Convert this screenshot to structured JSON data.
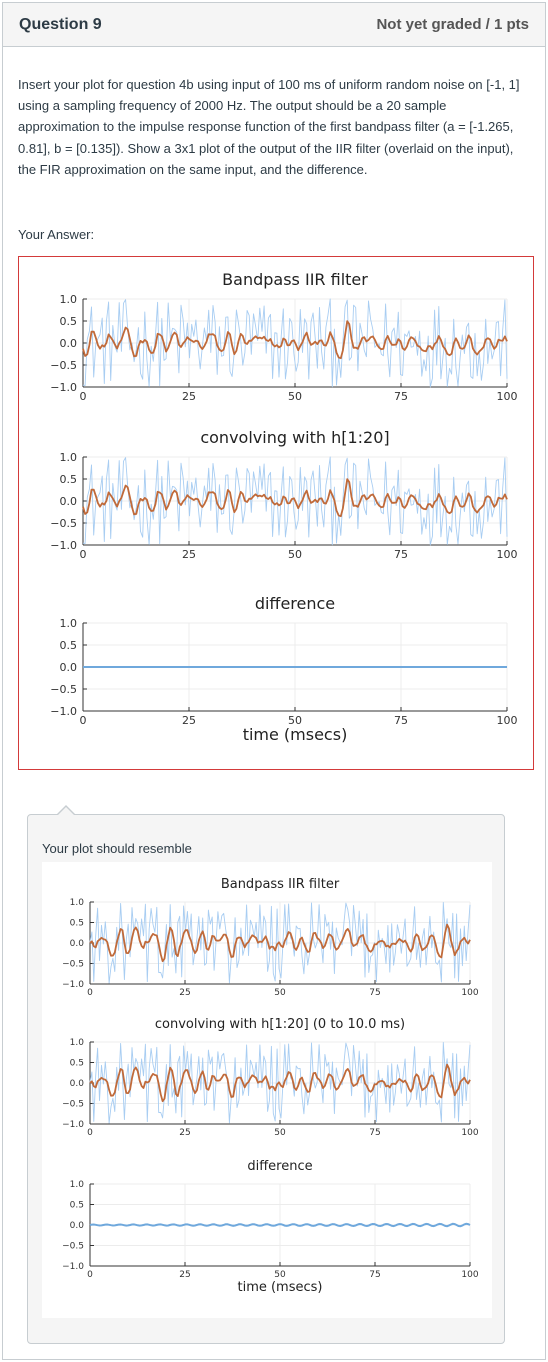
{
  "question": {
    "title": "Question 9",
    "grade": "Not yet graded / 1 pts",
    "text": "Insert your plot for question 4b using input of 100 ms of uniform random noise on [-1, 1] using a sampling frequency of 2000 Hz.  The output should be a 20 sample approximation to the impulse response function of the first bandpass filter (a = [-1.265, 0.81], b = [0.135]).  Show a 3x1 plot of the output of the IIR filter (overlaid on the input), the FIR approximation on the same input, and the difference.",
    "your_answer_label": "Your Answer:",
    "resemble_label": "Your plot should resemble"
  },
  "colors": {
    "input_series": "#a8cdf2",
    "output_series": "#c06a3a",
    "difference_series": "#6fa8dc",
    "answer_border": "#d33a3a"
  },
  "answer_chart": {
    "chart_data": [
      {
        "type": "line",
        "title": "Bandpass IIR filter",
        "xlim": [
          0,
          100
        ],
        "ylim": [
          -1.0,
          1.0
        ],
        "xticks": [
          "0",
          "25",
          "50",
          "75",
          "100"
        ],
        "yticks": [
          "1.0",
          "0.5",
          "0.0",
          "−0.5",
          "−1.0"
        ],
        "series": [
          {
            "kind": "input"
          },
          {
            "kind": "output"
          }
        ]
      },
      {
        "type": "line",
        "title": "convolving with h[1:20]",
        "xlim": [
          0,
          100
        ],
        "ylim": [
          -1.0,
          1.0
        ],
        "xticks": [
          "0",
          "25",
          "50",
          "75",
          "100"
        ],
        "yticks": [
          "1.0",
          "0.5",
          "0.0",
          "−0.5",
          "−1.0"
        ],
        "series": [
          {
            "kind": "input"
          },
          {
            "kind": "output"
          }
        ]
      },
      {
        "type": "line",
        "title": "difference",
        "xlabel": "time (msecs)",
        "xlim": [
          0,
          100
        ],
        "ylim": [
          -1.0,
          1.0
        ],
        "xticks": [
          "0",
          "25",
          "50",
          "75",
          "100"
        ],
        "yticks": [
          "1.0",
          "0.5",
          "0.0",
          "−0.5",
          "−1.0"
        ],
        "series": [
          {
            "kind": "difference",
            "values": [
              0,
              0
            ]
          }
        ]
      }
    ]
  },
  "reference_chart": {
    "chart_data": [
      {
        "type": "line",
        "title": "Bandpass IIR filter",
        "xlim": [
          0,
          100
        ],
        "ylim": [
          -1.0,
          1.0
        ],
        "xticks": [
          "0",
          "25",
          "50",
          "75",
          "100"
        ],
        "yticks": [
          "1.0",
          "0.5",
          "0.0",
          "−0.5",
          "−1.0"
        ],
        "series": [
          {
            "kind": "input"
          },
          {
            "kind": "output"
          }
        ]
      },
      {
        "type": "line",
        "title": "convolving with h[1:20] (0 to 10.0 ms)",
        "xlim": [
          0,
          100
        ],
        "ylim": [
          -1.0,
          1.0
        ],
        "xticks": [
          "0",
          "25",
          "50",
          "75",
          "100"
        ],
        "yticks": [
          "1.0",
          "0.5",
          "0.0",
          "−0.5",
          "−1.0"
        ],
        "series": [
          {
            "kind": "input"
          },
          {
            "kind": "output"
          }
        ]
      },
      {
        "type": "line",
        "title": "difference",
        "xlabel": "time (msecs)",
        "xlim": [
          0,
          100
        ],
        "ylim": [
          -1.0,
          1.0
        ],
        "xticks": [
          "0",
          "25",
          "50",
          "75",
          "100"
        ],
        "yticks": [
          "1.0",
          "0.5",
          "0.0",
          "−0.5",
          "−1.0"
        ],
        "series": [
          {
            "kind": "difference",
            "amplitude": 0.03
          }
        ]
      }
    ]
  }
}
